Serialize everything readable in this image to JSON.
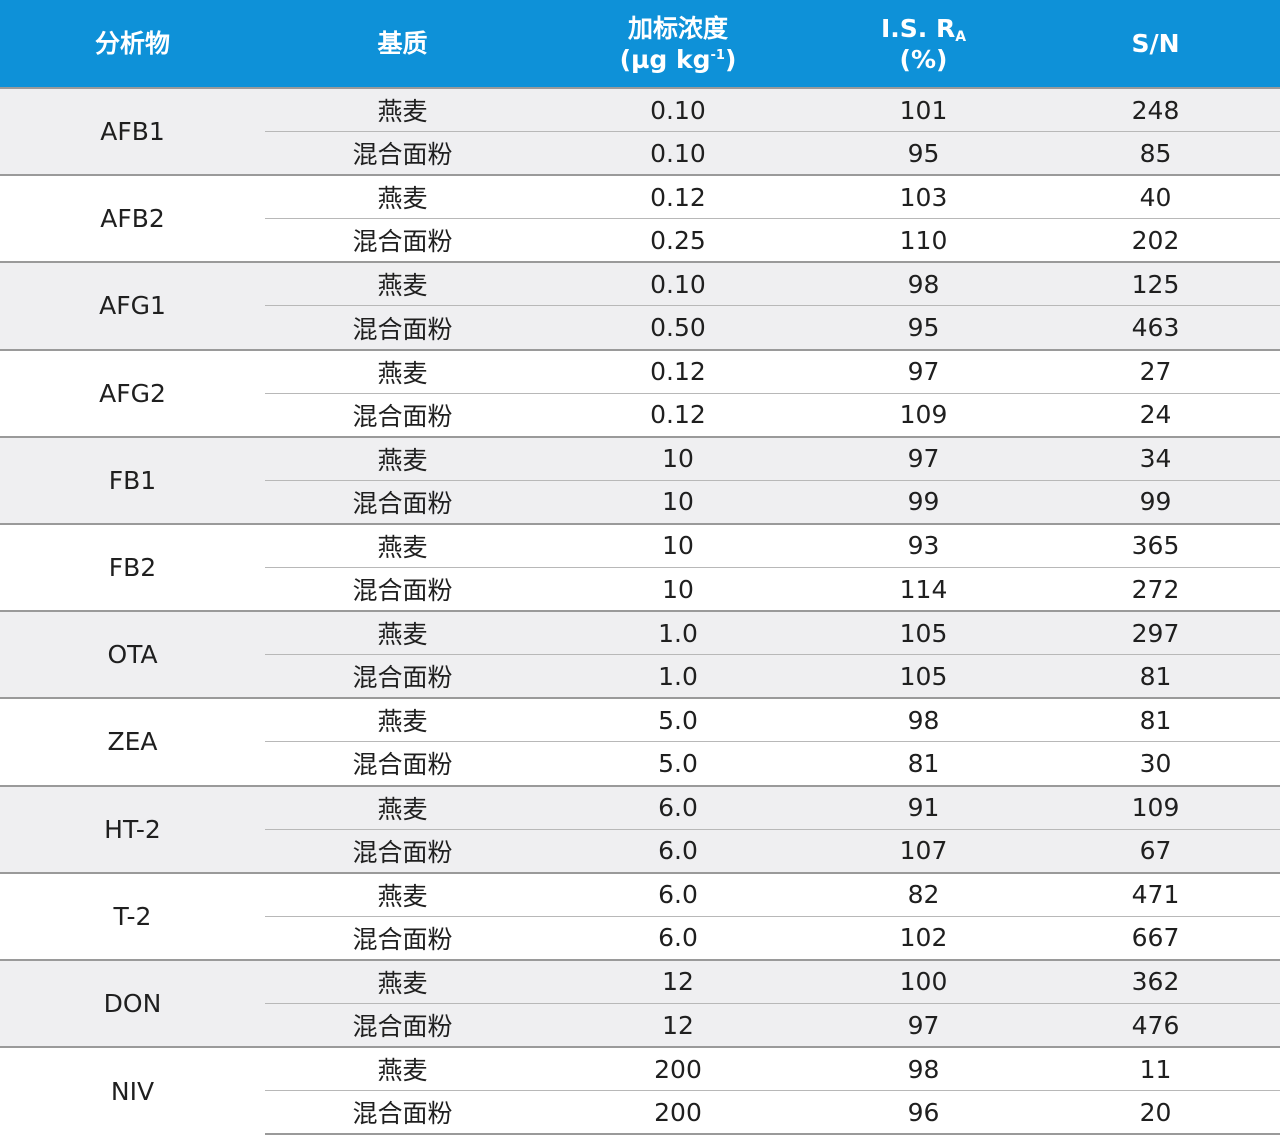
{
  "header": {
    "analyte": "分析物",
    "matrix": "基质",
    "spike_line1": "加标浓度",
    "spike_unit_pre": "(µg kg",
    "spike_unit_sup": "-1",
    "spike_unit_post": ")",
    "ra_pre": "I.S. R",
    "ra_sub": "A",
    "ra_unit": "(%)",
    "sn": "S/N"
  },
  "rows": [
    {
      "analyte": "AFB1",
      "entries": [
        {
          "matrix": "燕麦",
          "spike": "0.10",
          "ra": "101",
          "sn": "248"
        },
        {
          "matrix": "混合面粉",
          "spike": "0.10",
          "ra": "95",
          "sn": "85"
        }
      ]
    },
    {
      "analyte": "AFB2",
      "entries": [
        {
          "matrix": "燕麦",
          "spike": "0.12",
          "ra": "103",
          "sn": "40"
        },
        {
          "matrix": "混合面粉",
          "spike": "0.25",
          "ra": "110",
          "sn": "202"
        }
      ]
    },
    {
      "analyte": "AFG1",
      "entries": [
        {
          "matrix": "燕麦",
          "spike": "0.10",
          "ra": "98",
          "sn": "125"
        },
        {
          "matrix": "混合面粉",
          "spike": "0.50",
          "ra": "95",
          "sn": "463"
        }
      ]
    },
    {
      "analyte": "AFG2",
      "entries": [
        {
          "matrix": "燕麦",
          "spike": "0.12",
          "ra": "97",
          "sn": "27"
        },
        {
          "matrix": "混合面粉",
          "spike": "0.12",
          "ra": "109",
          "sn": "24"
        }
      ]
    },
    {
      "analyte": "FB1",
      "entries": [
        {
          "matrix": "燕麦",
          "spike": "10",
          "ra": "97",
          "sn": "34"
        },
        {
          "matrix": "混合面粉",
          "spike": "10",
          "ra": "99",
          "sn": "99"
        }
      ]
    },
    {
      "analyte": "FB2",
      "entries": [
        {
          "matrix": "燕麦",
          "spike": "10",
          "ra": "93",
          "sn": "365"
        },
        {
          "matrix": "混合面粉",
          "spike": "10",
          "ra": "114",
          "sn": "272"
        }
      ]
    },
    {
      "analyte": "OTA",
      "entries": [
        {
          "matrix": "燕麦",
          "spike": "1.0",
          "ra": "105",
          "sn": "297"
        },
        {
          "matrix": "混合面粉",
          "spike": "1.0",
          "ra": "105",
          "sn": "81"
        }
      ]
    },
    {
      "analyte": "ZEA",
      "entries": [
        {
          "matrix": "燕麦",
          "spike": "5.0",
          "ra": "98",
          "sn": "81"
        },
        {
          "matrix": "混合面粉",
          "spike": "5.0",
          "ra": "81",
          "sn": "30"
        }
      ]
    },
    {
      "analyte": "HT-2",
      "entries": [
        {
          "matrix": "燕麦",
          "spike": "6.0",
          "ra": "91",
          "sn": "109"
        },
        {
          "matrix": "混合面粉",
          "spike": "6.0",
          "ra": "107",
          "sn": "67"
        }
      ]
    },
    {
      "analyte": "T-2",
      "entries": [
        {
          "matrix": "燕麦",
          "spike": "6.0",
          "ra": "82",
          "sn": "471"
        },
        {
          "matrix": "混合面粉",
          "spike": "6.0",
          "ra": "102",
          "sn": "667"
        }
      ]
    },
    {
      "analyte": "DON",
      "entries": [
        {
          "matrix": "燕麦",
          "spike": "12",
          "ra": "100",
          "sn": "362"
        },
        {
          "matrix": "混合面粉",
          "spike": "12",
          "ra": "97",
          "sn": "476"
        }
      ]
    },
    {
      "analyte": "NIV",
      "entries": [
        {
          "matrix": "燕麦",
          "spike": "200",
          "ra": "98",
          "sn": "11"
        },
        {
          "matrix": "混合面粉",
          "spike": "200",
          "ra": "96",
          "sn": "20"
        }
      ]
    }
  ]
}
